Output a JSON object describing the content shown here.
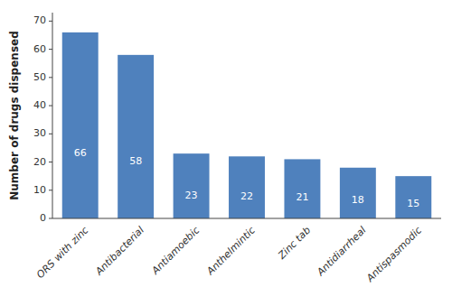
{
  "chart_data": {
    "type": "bar",
    "categories": [
      "ORS with zinc",
      "Antibacterial",
      "Antiamoebic",
      "Anthelmintic",
      "Zinc tab",
      "Antidiarrheal",
      "Antispasmodic"
    ],
    "values": [
      66,
      58,
      23,
      22,
      21,
      18,
      15
    ],
    "color": "#4F81BD",
    "ylabel": "Number of drugs dispensed",
    "ylim": [
      0,
      73
    ],
    "yticks": [
      0,
      10,
      20,
      30,
      40,
      50,
      60,
      70
    ],
    "grid": false,
    "data_labels": true
  }
}
